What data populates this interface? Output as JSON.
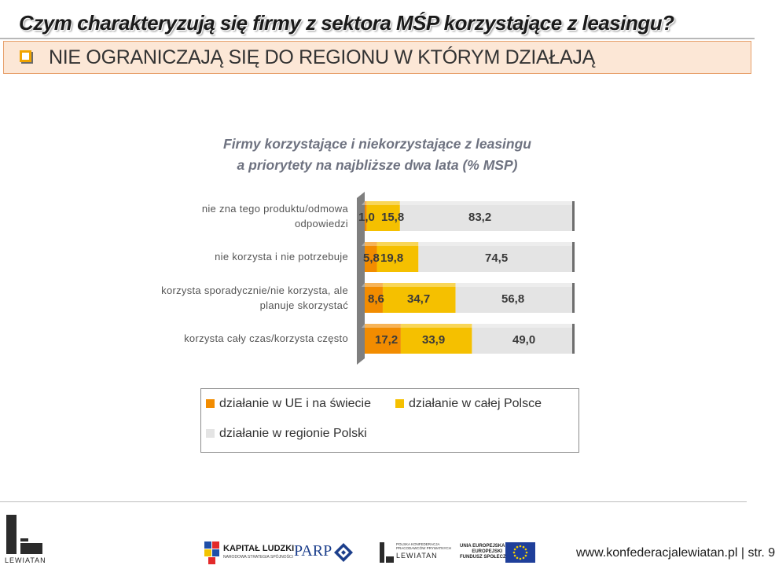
{
  "header": {
    "title": "Czym charakteryzują się firmy z sektora MŚP korzystające z leasingu?",
    "subtitle": "NIE OGRANICZAJĄ SIĘ DO REGIONU W KTÓRYM DZIAŁAJĄ"
  },
  "chart_data": {
    "type": "bar",
    "orientation": "horizontal",
    "stacked": true,
    "percent": true,
    "title": "Firmy korzystające i niekorzystające z leasingu a priorytety na najbliższe dwa lata (% MSP)",
    "title_lines": [
      "Firmy korzystające i niekorzystające z leasingu",
      "a priorytety na najbliższe dwa lata (% MSP)"
    ],
    "categories": [
      [
        "nie zna tego produktu/odmowa",
        "odpowiedzi"
      ],
      [
        "nie korzysta i nie potrzebuje"
      ],
      [
        "korzysta sporadycznie/nie korzysta, ale",
        "planuje skorzystać"
      ],
      [
        "korzysta cały czas/korzysta często"
      ]
    ],
    "series": [
      {
        "name": "działanie w UE i na świecie",
        "color": "#f28c00",
        "values": [
          1.0,
          5.8,
          8.6,
          17.2
        ],
        "labels": [
          "1,0",
          "5,8",
          "8,6",
          "17,2"
        ]
      },
      {
        "name": "działanie w całej Polsce",
        "color": "#f5c000",
        "values": [
          15.8,
          19.8,
          34.7,
          33.9
        ],
        "labels": [
          "15,8",
          "19,8",
          "34,7",
          "33,9"
        ]
      },
      {
        "name": "działanie w regionie Polski",
        "color": "#e4e4e4",
        "values": [
          83.2,
          74.5,
          56.8,
          49.0
        ],
        "labels": [
          "83,2",
          "74,5",
          "56,8",
          "49,0"
        ]
      }
    ],
    "xlim": [
      0,
      100
    ],
    "grid": false,
    "legend": "bottom"
  },
  "legend": {
    "items": [
      {
        "label": "działanie w UE i na świecie",
        "color": "#f28c00"
      },
      {
        "label": "działanie w całej Polsce",
        "color": "#f5c000"
      },
      {
        "label": "działanie w regionie Polski",
        "color": "#e4e4e4"
      }
    ]
  },
  "footer": {
    "url": "www.konfederacjalewiatan.pl | str. 9",
    "logos": {
      "lewiatan": "LEWIATAN",
      "kapital_main": "KAPITAŁ LUDZKI",
      "kapital_sub": "NARODOWA STRATEGIA SPÓJNOŚCI",
      "parp": "PARP",
      "lewiatan2_small_1": "POLSKA KONFEDERACJA",
      "lewiatan2_small_2": "PRACODAWCÓW PRYWATNYCH",
      "lewiatan2_name": "LEWIATAN",
      "eu_1": "UNIA EUROPEJSKA",
      "eu_2": "EUROPEJSKI",
      "eu_3": "FUNDUSZ SPOŁECZNY"
    }
  }
}
